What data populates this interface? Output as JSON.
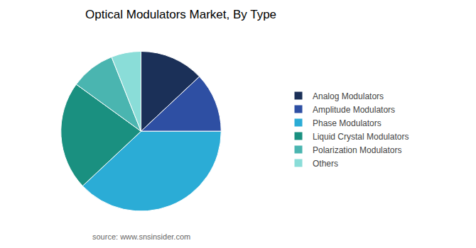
{
  "chart_data": {
    "type": "pie",
    "title": "Optical Modulators Market, By Type",
    "categories": [
      "Analog Modulators",
      "Amplitude Modulators",
      "Phase Modulators",
      "Liquid Crystal Modulators",
      "Polarization Modulators",
      "Others"
    ],
    "values": [
      13,
      12,
      38,
      22,
      9,
      6
    ],
    "colors": [
      "#1b3058",
      "#2e4fa3",
      "#2bacd6",
      "#1a9080",
      "#4ab5b0",
      "#8addd8"
    ],
    "legend": "right",
    "data_labels": false,
    "annotations": [
      "source: www.snsinsider.com"
    ]
  }
}
